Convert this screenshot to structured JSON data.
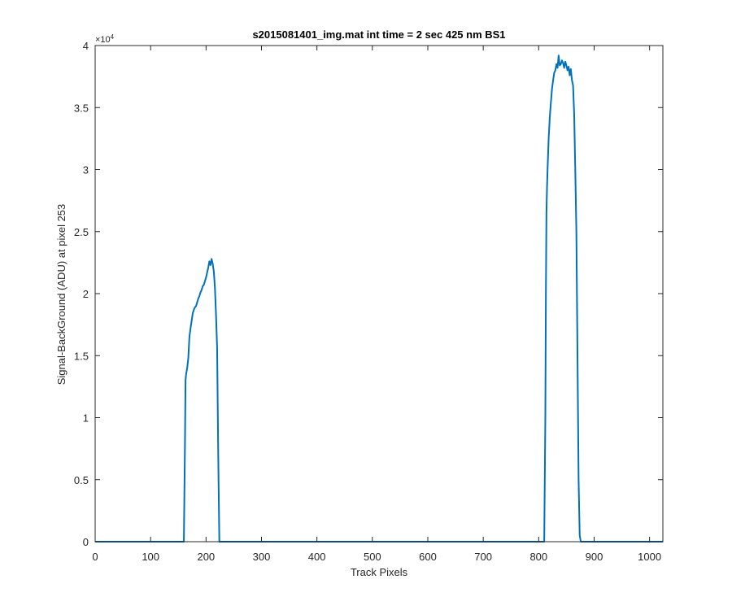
{
  "chart_data": {
    "type": "line",
    "title": "s2015081401_img.mat int time = 2 sec  425 nm BS1",
    "xlabel": "Track Pixels",
    "ylabel": "Signal-BackGround (ADU) at pixel 253",
    "xlim": [
      0,
      1024
    ],
    "ylim": [
      0,
      40000
    ],
    "xticks": [
      0,
      100,
      200,
      300,
      400,
      500,
      600,
      700,
      800,
      900,
      1000
    ],
    "yticks": [
      0,
      0.5,
      1,
      1.5,
      2,
      2.5,
      3,
      3.5,
      4
    ],
    "ytick_labels": [
      "0",
      "0.5",
      "1",
      "1.5",
      "2",
      "2.5",
      "3",
      "3.5",
      "4"
    ],
    "y_multiplier": 10000,
    "y_exponent_label": "×10",
    "y_exponent_power": "4",
    "grid": false,
    "series": [
      {
        "color": "#0072BD",
        "x": [
          0,
          160,
          162,
          163,
          164,
          166,
          168,
          170,
          172,
          174,
          176,
          178,
          180,
          182,
          184,
          186,
          188,
          190,
          192,
          194,
          196,
          198,
          200,
          202,
          204,
          206,
          208,
          210,
          212,
          214,
          216,
          218,
          220,
          222,
          224,
          226,
          228,
          230,
          400,
          600,
          800,
          810,
          812,
          813,
          814,
          815,
          816,
          818,
          820,
          822,
          824,
          826,
          828,
          830,
          832,
          834,
          836,
          838,
          840,
          842,
          844,
          846,
          848,
          850,
          852,
          854,
          856,
          858,
          860,
          862,
          864,
          866,
          868,
          870,
          872,
          874,
          876,
          878,
          880,
          900,
          1024
        ],
        "y": [
          0,
          0,
          8000,
          13000,
          13500,
          14000,
          14800,
          16500,
          17200,
          17800,
          18400,
          18700,
          18900,
          19000,
          19300,
          19600,
          19800,
          20100,
          20300,
          20600,
          20700,
          21000,
          21300,
          21700,
          22100,
          22600,
          22300,
          22800,
          22400,
          21800,
          20500,
          18300,
          15600,
          7000,
          0,
          0,
          0,
          0,
          0,
          0,
          0,
          0,
          10000,
          20000,
          26500,
          28500,
          30000,
          32500,
          34200,
          35400,
          36500,
          37200,
          37800,
          38000,
          38500,
          38200,
          39200,
          38400,
          38500,
          38800,
          38600,
          38200,
          38700,
          38400,
          38000,
          38300,
          37600,
          38100,
          37200,
          36800,
          34500,
          30000,
          25000,
          15000,
          5000,
          500,
          0,
          0,
          0,
          0,
          0
        ]
      }
    ]
  }
}
